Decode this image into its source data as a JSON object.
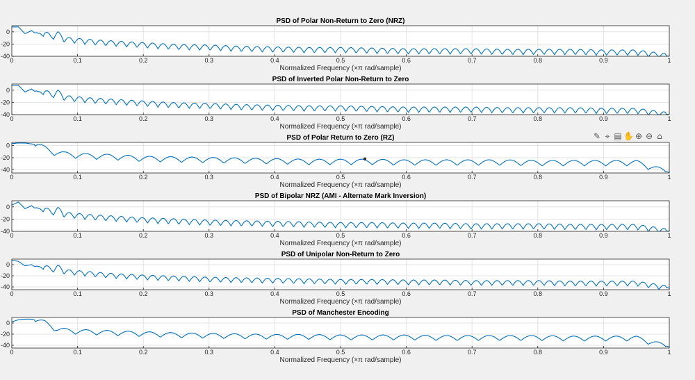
{
  "colors": {
    "figure_bg": "#f0f0f0",
    "axes_bg": "#ffffff",
    "line": "#0072bd",
    "grid": "#e3e3e3",
    "axis": "#262626"
  },
  "toolbar": {
    "items": [
      {
        "name": "brush-icon",
        "glyph": "✎"
      },
      {
        "name": "datatip-icon",
        "glyph": "⌖"
      },
      {
        "name": "save-icon",
        "glyph": "▤"
      },
      {
        "name": "pan-icon",
        "glyph": "✋"
      },
      {
        "name": "zoom-in-icon",
        "glyph": "⊕"
      },
      {
        "name": "zoom-out-icon",
        "glyph": "⊖"
      },
      {
        "name": "home-icon",
        "glyph": "⌂"
      }
    ]
  },
  "chart_data": [
    {
      "type": "line",
      "title": "PSD of Polar Non-Return to Zero (NRZ)",
      "xlabel": "Normalized Frequency  (×π rad/sample)",
      "xlim": [
        0,
        1
      ],
      "ylim": [
        -40,
        10
      ],
      "xticks": [
        "0",
        "0.1",
        "0.2",
        "0.3",
        "0.4",
        "0.5",
        "0.6",
        "0.7",
        "0.8",
        "0.9",
        "1"
      ],
      "yticks": [
        "0",
        "-20",
        "-40"
      ],
      "grid": true,
      "series": [
        {
          "x": [
            0,
            0.01,
            0.02,
            0.03,
            0.04,
            0.05,
            0.06,
            0.07,
            0.08,
            0.1,
            0.12,
            0.15,
            0.2,
            0.25,
            0.3,
            0.35,
            0.4,
            0.45,
            0.5,
            0.55,
            0.6,
            0.65,
            0.7,
            0.75,
            0.8,
            0.85,
            0.9,
            0.95,
            1
          ],
          "y": [
            8,
            8,
            -3,
            2,
            -6,
            -1,
            -9,
            -3,
            -12,
            -14,
            -16,
            -18,
            -21,
            -24,
            -25,
            -27,
            -28,
            -29,
            -29,
            -30,
            -31,
            -31,
            -31,
            -32,
            -32,
            -32,
            -33,
            -33,
            -40
          ],
          "ripples": 63
        }
      ]
    },
    {
      "type": "line",
      "title": "PSD of Inverted Polar Non-Return to Zero",
      "xlabel": "Normalized Frequency  (×π rad/sample)",
      "xlim": [
        0,
        1
      ],
      "ylim": [
        -40,
        10
      ],
      "xticks": [
        "0",
        "0.1",
        "0.2",
        "0.3",
        "0.4",
        "0.5",
        "0.6",
        "0.7",
        "0.8",
        "0.9",
        "1"
      ],
      "yticks": [
        "0",
        "-20",
        "-40"
      ],
      "grid": true,
      "series": [
        {
          "x": [
            0,
            0.01,
            0.02,
            0.03,
            0.04,
            0.05,
            0.06,
            0.07,
            0.08,
            0.1,
            0.12,
            0.15,
            0.2,
            0.25,
            0.3,
            0.35,
            0.4,
            0.45,
            0.5,
            0.55,
            0.6,
            0.65,
            0.7,
            0.75,
            0.8,
            0.85,
            0.9,
            0.95,
            1
          ],
          "y": [
            8,
            8,
            -3,
            2,
            -6,
            -1,
            -9,
            -3,
            -12,
            -14,
            -16,
            -18,
            -21,
            -24,
            -25,
            -27,
            -28,
            -29,
            -29,
            -30,
            -31,
            -31,
            -31,
            -32,
            -32,
            -32,
            -33,
            -33,
            -40
          ],
          "ripples": 63
        }
      ]
    },
    {
      "type": "line",
      "title": "PSD of Polar Return to Zero (RZ)",
      "xlabel": "Normalized Frequency  (×π rad/sample)",
      "xlim": [
        0,
        1
      ],
      "ylim": [
        -45,
        5
      ],
      "xticks": [
        "0",
        "0.1",
        "0.2",
        "0.3",
        "0.4",
        "0.5",
        "0.6",
        "0.7",
        "0.8",
        "0.9",
        "1"
      ],
      "yticks": [
        "0",
        "-20",
        "-40"
      ],
      "grid": true,
      "series": [
        {
          "x": [
            0,
            0.01,
            0.02,
            0.04,
            0.06,
            0.08,
            0.1,
            0.12,
            0.15,
            0.2,
            0.25,
            0.3,
            0.35,
            0.4,
            0.45,
            0.5,
            0.55,
            0.6,
            0.65,
            0.7,
            0.75,
            0.8,
            0.85,
            0.9,
            0.95,
            1
          ],
          "y": [
            3,
            4,
            4,
            1,
            -10,
            -14,
            -16,
            -17,
            -18,
            -21,
            -22,
            -23,
            -24,
            -25,
            -26,
            -26,
            -26,
            -27,
            -27,
            -27,
            -27,
            -28,
            -28,
            -28,
            -28,
            -44
          ],
          "ripples": 31
        }
      ],
      "marker": {
        "x": 0.537,
        "y": -22
      }
    },
    {
      "type": "line",
      "title": "PSD of Bipolar NRZ (AMI - Alternate Mark Inversion)",
      "xlabel": "Normalized Frequency  (×π rad/sample)",
      "xlim": [
        0,
        1
      ],
      "ylim": [
        -40,
        10
      ],
      "xticks": [
        "0",
        "0.1",
        "0.2",
        "0.3",
        "0.4",
        "0.5",
        "0.6",
        "0.7",
        "0.8",
        "0.9",
        "1"
      ],
      "yticks": [
        "0",
        "-20",
        "-40"
      ],
      "grid": true,
      "series": [
        {
          "x": [
            0,
            0.01,
            0.02,
            0.03,
            0.04,
            0.05,
            0.06,
            0.07,
            0.08,
            0.1,
            0.12,
            0.15,
            0.2,
            0.25,
            0.3,
            0.35,
            0.4,
            0.45,
            0.5,
            0.55,
            0.6,
            0.65,
            0.7,
            0.75,
            0.8,
            0.85,
            0.9,
            0.95,
            1
          ],
          "y": [
            3,
            8,
            -3,
            2,
            -6,
            -2,
            -10,
            -4,
            -12,
            -14,
            -16,
            -18,
            -21,
            -23,
            -25,
            -26,
            -27,
            -28,
            -29,
            -29,
            -30,
            -30,
            -31,
            -31,
            -31,
            -32,
            -32,
            -32,
            -40
          ],
          "ripples": 63
        }
      ]
    },
    {
      "type": "line",
      "title": "PSD of Unipolar Non-Return to Zero",
      "xlabel": "Normalized Frequency  (×π rad/sample)",
      "xlim": [
        0,
        1
      ],
      "ylim": [
        -45,
        10
      ],
      "xticks": [
        "0",
        "0.1",
        "0.2",
        "0.3",
        "0.4",
        "0.5",
        "0.6",
        "0.7",
        "0.8",
        "0.9",
        "1"
      ],
      "yticks": [
        "0",
        "-20",
        "-40"
      ],
      "grid": true,
      "series": [
        {
          "x": [
            0,
            0.01,
            0.02,
            0.03,
            0.04,
            0.05,
            0.06,
            0.07,
            0.08,
            0.1,
            0.12,
            0.15,
            0.2,
            0.25,
            0.3,
            0.35,
            0.4,
            0.45,
            0.5,
            0.55,
            0.6,
            0.65,
            0.7,
            0.75,
            0.8,
            0.85,
            0.9,
            0.95,
            1
          ],
          "y": [
            8,
            6,
            -2,
            0,
            -7,
            -2,
            -10,
            -4,
            -12,
            -14,
            -16,
            -19,
            -22,
            -24,
            -26,
            -27,
            -28,
            -29,
            -30,
            -30,
            -31,
            -31,
            -32,
            -32,
            -32,
            -33,
            -33,
            -33,
            -42
          ],
          "ripples": 63
        }
      ]
    },
    {
      "type": "line",
      "title": "PSD of Manchester Encoding",
      "xlabel": "Normalized Frequency  (×π rad/sample)",
      "xlim": [
        0,
        1
      ],
      "ylim": [
        -45,
        10
      ],
      "xticks": [
        "0",
        "0.1",
        "0.2",
        "0.3",
        "0.4",
        "0.5",
        "0.6",
        "0.7",
        "0.8",
        "0.9",
        "1"
      ],
      "yticks": [
        "0",
        "-20",
        "-40"
      ],
      "grid": true,
      "series": [
        {
          "x": [
            0,
            0.01,
            0.02,
            0.03,
            0.05,
            0.07,
            0.1,
            0.15,
            0.2,
            0.25,
            0.3,
            0.35,
            0.4,
            0.45,
            0.5,
            0.55,
            0.6,
            0.65,
            0.7,
            0.75,
            0.8,
            0.85,
            0.9,
            0.95,
            1
          ],
          "y": [
            2,
            6,
            7,
            7,
            1,
            -12,
            -15,
            -17,
            -19,
            -21,
            -22,
            -23,
            -24,
            -24,
            -25,
            -25,
            -25,
            -26,
            -26,
            -26,
            -26,
            -27,
            -27,
            -27,
            -43
          ],
          "ripples": 31
        }
      ]
    }
  ]
}
